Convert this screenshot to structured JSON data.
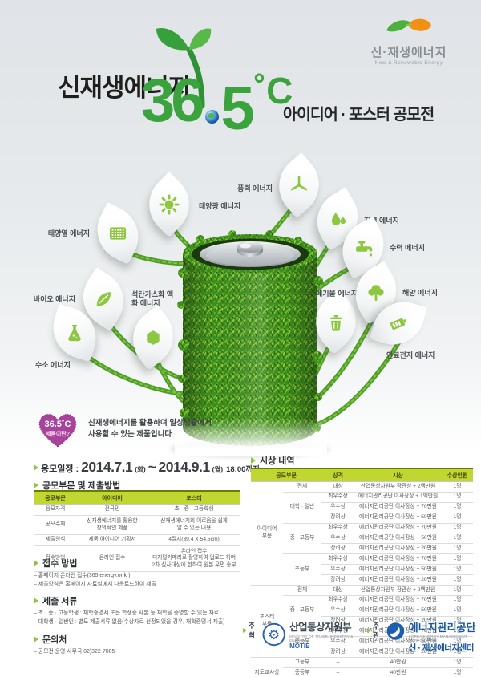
{
  "brand": {
    "name": "신·재생에너지",
    "eng": "New & Renewable Energy"
  },
  "title": {
    "line1": "신재생에너지",
    "num36": "36",
    "num5": "5",
    "degree": "˚C",
    "right": "아이디어 · 포스터 공모전"
  },
  "energies": [
    {
      "id": "solar-pv",
      "label": "태양광 에너지"
    },
    {
      "id": "solar-thermal",
      "label": "태양열 에너지"
    },
    {
      "id": "bio",
      "label": "바이오 에너지"
    },
    {
      "id": "hydrogen",
      "label": "수소 에너지"
    },
    {
      "id": "coal-gas",
      "label": "석탄가스화 액화 에너지"
    },
    {
      "id": "wind",
      "label": "풍력 에너지"
    },
    {
      "id": "geothermal",
      "label": "지열 에너지"
    },
    {
      "id": "hydro",
      "label": "수력 에너지"
    },
    {
      "id": "waste",
      "label": "폐기물 에너지"
    },
    {
      "id": "ocean",
      "label": "해양 에너지"
    },
    {
      "id": "fuel-cell",
      "label": "연료전지 에너지"
    }
  ],
  "badge": {
    "temp": "36.5˚C",
    "question": "제품이란?",
    "desc1": "신재생에너지를 활용하여 일상생활에서",
    "desc2": "사용할 수 있는 제품입니다"
  },
  "schedule": {
    "label": "응모일정",
    "colon": ":",
    "date1": "2014.7.1",
    "day1": "(화)",
    "tilde": "~",
    "date2": "2014.9.1",
    "day2": "(월)",
    "time": "18:00까지"
  },
  "submission_table": {
    "title": "공모부문 및 제출방법",
    "columns": [
      "공모부문",
      "아이디어",
      "포스터"
    ],
    "rows": [
      {
        "c": [
          "응모자격",
          "전국민",
          "초 · 중 · 고등학생"
        ]
      },
      {
        "c": [
          "공모주제",
          "신재생에너지를 활용한\n창의적인 제품",
          "신재생에너지의 이로움을 쉽게\n알 수 있는 내용"
        ]
      },
      {
        "c": [
          "제출형식",
          "제품 아이디어 기획서",
          "4절지(39.4 X 54.5cm)"
        ]
      },
      {
        "c": [
          "접수방법",
          "온라인 접수",
          "온라인 접수\n디지털카메라로 촬영하여 업로드 하며\n2차 심사대상에 한하여 원본 우편 송부"
        ]
      }
    ]
  },
  "prize_table": {
    "title": "시상 내역",
    "columns": [
      {
        "t": "공모부문",
        "cs": 2
      },
      {
        "t": "상격"
      },
      {
        "t": "시상"
      },
      {
        "t": "수상인원"
      }
    ],
    "rows": [
      {
        "c": [
          {
            "t": "아이디어\n부문",
            "rs": 10
          },
          "전체",
          "대상",
          "산업통상자원부 장관상 + 2백만원",
          "1명"
        ]
      },
      {
        "c": [
          {
            "t": "대학 · 일반",
            "rs": 3
          },
          "최우수상",
          "에너지관리공단 이사장상 + 1백만원",
          "1명"
        ]
      },
      {
        "c": [
          "우수상",
          "에너지관리공단 이사장상 + 70만원",
          "1명"
        ]
      },
      {
        "c": [
          "장려상",
          "에너지관리공단 이사장상 + 50만원",
          "1명"
        ]
      },
      {
        "c": [
          {
            "t": "중 · 고등부",
            "rs": 3
          },
          "최우수상",
          "에너지관리공단 이사장상 + 70만원",
          "1명"
        ]
      },
      {
        "c": [
          "우수상",
          "에너지관리공단 이사장상 + 50만원",
          "1명"
        ]
      },
      {
        "c": [
          "장려상",
          "에너지관리공단 이사장상 + 20만원",
          "1명"
        ]
      },
      {
        "c": [
          {
            "t": "초등부",
            "rs": 3
          },
          "최우수상",
          "에너지관리공단 이사장상 + 70만원",
          "1명"
        ]
      },
      {
        "c": [
          "우수상",
          "에너지관리공단 이사장상 + 50만원",
          "1명"
        ]
      },
      {
        "c": [
          "장려상",
          "에너지관리공단 이사장상 + 20만원",
          "1명"
        ]
      },
      {
        "k": "grp",
        "c": [
          {
            "t": "포스터\n부문",
            "rs": 7
          },
          "전체",
          "대상",
          "산업통상자원부 장관상 + 2백만원",
          "1명"
        ]
      },
      {
        "c": [
          {
            "t": "중 · 고등부",
            "rs": 3
          },
          "최우수상",
          "에너지관리공단 이사장상 + 70만원",
          "1명"
        ]
      },
      {
        "c": [
          "우수상",
          "에너지관리공단 이사장상 + 50만원",
          "1명"
        ]
      },
      {
        "c": [
          "장려상",
          "에너지관리공단 이사장상 + 20만원",
          "1명"
        ]
      },
      {
        "c": [
          {
            "t": "초등부",
            "rs": 3
          },
          "최우수상",
          "에너지관리공단 이사장상 + 70만원",
          "1명"
        ]
      },
      {
        "c": [
          "우수상",
          "에너지관리공단 이사장상 + 50만원",
          "1명"
        ]
      },
      {
        "c": [
          "장려상",
          "에너지관리공단 이사장상 + 20만원",
          "1명"
        ]
      },
      {
        "k": "grp",
        "c": [
          {
            "t": "지도교사상",
            "rs": 3
          },
          "고등부",
          "–",
          "40만원",
          "1명"
        ]
      },
      {
        "c": [
          "중등부",
          "–",
          "40만원",
          "1명"
        ]
      },
      {
        "c": [
          "초등부",
          "–",
          "40만원",
          "1명"
        ]
      }
    ]
  },
  "method": {
    "title": "접수 방법",
    "lines": [
      "– 홈페이지 온라인 접수(365.energy.or.kr)",
      "– 제출양식은 홈페이지 자료실에서 다운로드하여 제출"
    ]
  },
  "documents": {
    "title": "제출 서류",
    "lines": [
      "– 초 · 중 · 고등학생 : 재학증명서 또는 학생증 사본 등 재학을 증명할 수 있는 자료",
      "– 대학생 · 일반인 : 별도 제출서류 없음(수상자로 선정되었을 경우, 재학증명서 제출)"
    ]
  },
  "contact": {
    "title": "문의처",
    "lines": [
      "– 공모전 운영 사무국 02)322-7005"
    ]
  },
  "organizers": {
    "host_label": "주최",
    "host_name": "산업통상자원부",
    "host_eng": "MINISTRY OF TRADE, INDUSTRY & ENERGY",
    "host_abbr": "MOTIE",
    "organizer_label": "주관",
    "org_name": "에너지관리공단",
    "org_eng": "KOREA ENERGY MANAGEMENT CORPORATION",
    "org_sub": "신 · 재생에너지센터"
  },
  "colors": {
    "accent_green": "#8dc63f",
    "number_green": "#3ba33e",
    "table_header": "#bfd730",
    "heart_purple": "#a8439b",
    "motie_blue": "#2a63ae"
  }
}
